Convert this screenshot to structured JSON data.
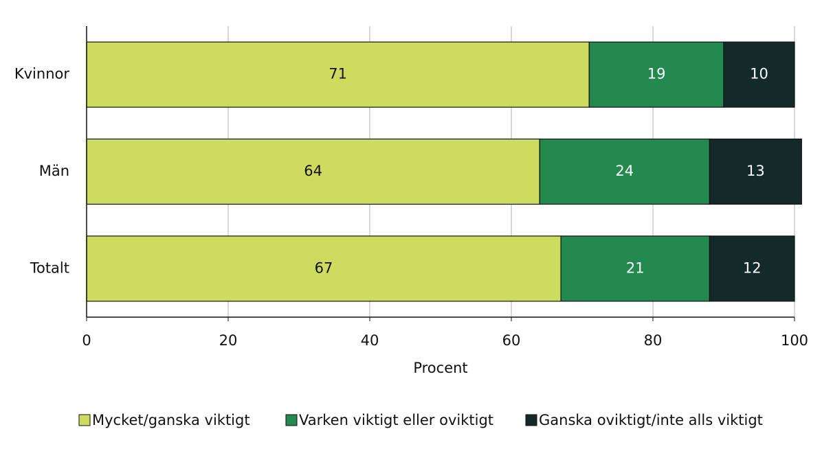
{
  "chart_data": {
    "type": "stacked-bar-horizontal",
    "categories": [
      "Kvinnor",
      "Män",
      "Totalt"
    ],
    "series": [
      {
        "name": "Mycket/ganska viktigt",
        "color": "#cddc5f",
        "values": [
          71,
          64,
          67
        ]
      },
      {
        "name": "Varken viktigt eller oviktigt",
        "color": "#23894f",
        "values": [
          19,
          24,
          21
        ]
      },
      {
        "name": "Ganska oviktigt/inte alls viktigt",
        "color": "#13292a",
        "values": [
          10,
          13,
          12
        ]
      }
    ],
    "xlabel": "Procent",
    "xlim": [
      0,
      100
    ],
    "xticks": [
      0,
      20,
      40,
      60,
      80,
      100
    ],
    "grid": true,
    "legend": "bottom"
  }
}
